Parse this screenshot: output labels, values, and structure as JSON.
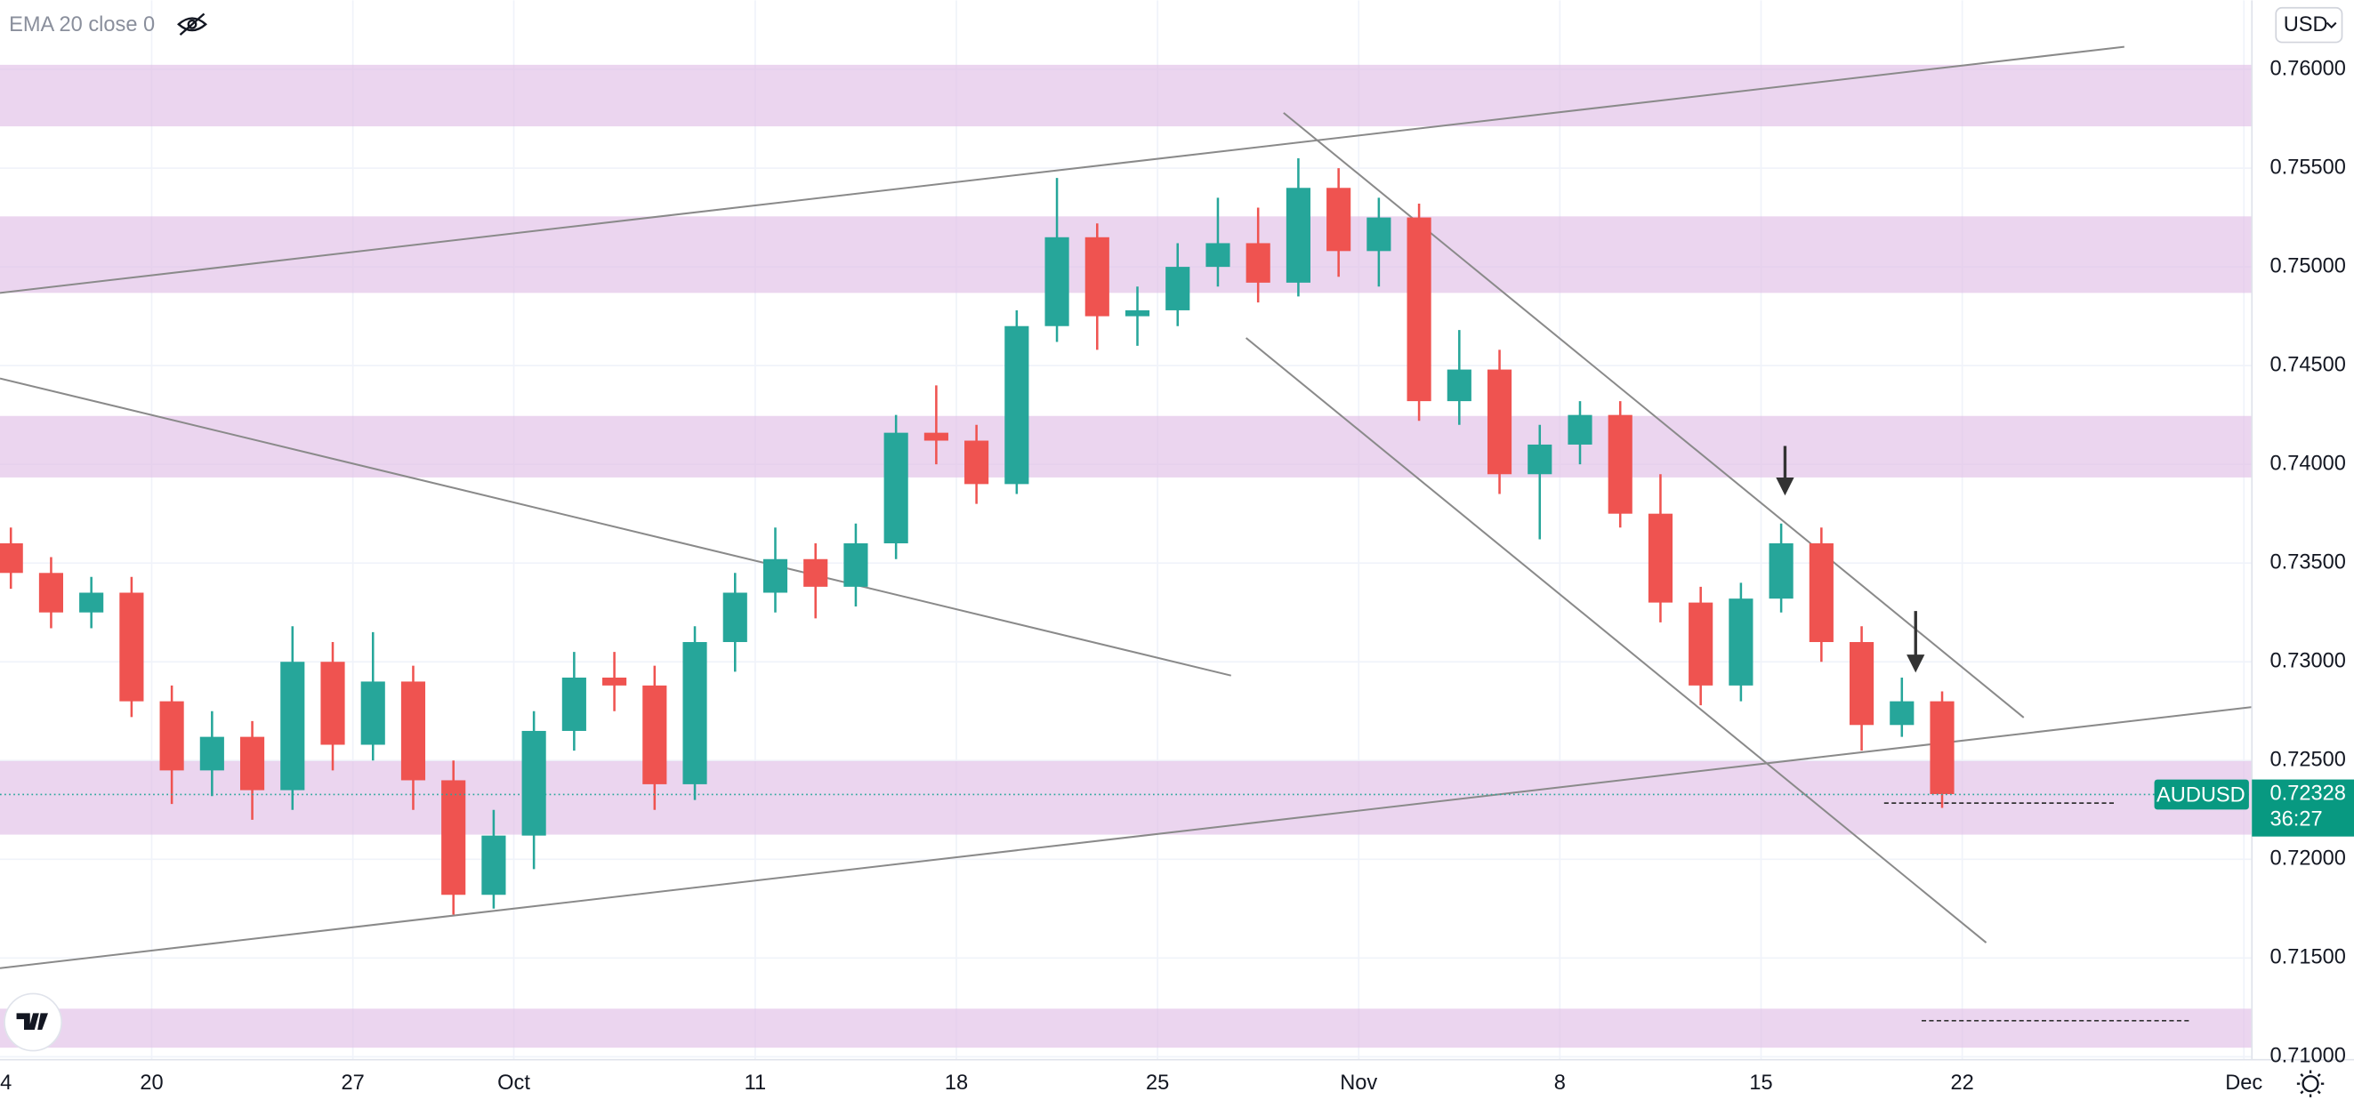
{
  "chart_data": {
    "type": "candlestick",
    "indicator_label": "EMA 20 close 0",
    "currency": "USD",
    "countdown": "36:27",
    "last_price": 0.72328,
    "xlim": [
      -3.77,
      52.2
    ],
    "xticks": [
      {
        "value": -4,
        "label": "4"
      },
      {
        "value": 0,
        "label": "20"
      },
      {
        "value": 5,
        "label": "27"
      },
      {
        "value": 9,
        "label": "Oct"
      },
      {
        "value": 15,
        "label": "11"
      },
      {
        "value": 20,
        "label": "18"
      },
      {
        "value": 25,
        "label": "25"
      },
      {
        "value": 30,
        "label": "Nov"
      },
      {
        "value": 35,
        "label": "8"
      },
      {
        "value": 40,
        "label": "15"
      },
      {
        "value": 45,
        "label": "22"
      },
      {
        "value": 52,
        "label": "Dec"
      }
    ],
    "ylim": [
      0.70985,
      0.7635
    ],
    "yticks": [
      {
        "value": 0.71,
        "label": "0.71000"
      },
      {
        "value": 0.715,
        "label": "0.71500"
      },
      {
        "value": 0.72,
        "label": "0.72000"
      },
      {
        "value": 0.725,
        "label": "0.72500"
      },
      {
        "value": 0.73,
        "label": "0.73000"
      },
      {
        "value": 0.735,
        "label": "0.73500"
      },
      {
        "value": 0.74,
        "label": "0.74000"
      },
      {
        "value": 0.745,
        "label": "0.74500"
      },
      {
        "value": 0.75,
        "label": "0.75000"
      },
      {
        "value": 0.755,
        "label": "0.75500"
      },
      {
        "value": 0.76,
        "label": "0.76000"
      }
    ],
    "grid": true,
    "x": [
      -3.5,
      -2.5,
      -1.5,
      -0.5,
      0.5,
      1.5,
      2.5,
      3.5,
      4.5,
      5.5,
      6.5,
      7.5,
      8.5,
      9.5,
      10.5,
      11.5,
      12.5,
      13.5,
      14.5,
      15.5,
      16.5,
      17.5,
      18.5,
      19.5,
      20.5,
      21.5,
      22.5,
      23.5,
      24.5,
      25.5,
      26.5,
      27.5,
      28.5,
      29.5,
      30.5,
      31.5,
      32.5,
      33.5,
      34.5,
      35.5,
      36.5,
      37.5,
      38.5,
      39.5,
      40.5,
      41.5,
      42.5,
      43.5,
      44.5
    ],
    "series": [
      {
        "name": "AUDUSD",
        "up_color": "#26a69a",
        "down_color": "#ef5350",
        "open": [
          0.736,
          0.7345,
          0.7325,
          0.7335,
          0.728,
          0.7245,
          0.7262,
          0.7235,
          0.73,
          0.7258,
          0.729,
          0.724,
          0.7182,
          0.7212,
          0.7265,
          0.7292,
          0.7288,
          0.7238,
          0.731,
          0.7335,
          0.7352,
          0.7338,
          0.736,
          0.7416,
          0.7412,
          0.739,
          0.747,
          0.7515,
          0.7475,
          0.7478,
          0.75,
          0.7512,
          0.7492,
          0.754,
          0.7508,
          0.7525,
          0.7432,
          0.7448,
          0.7395,
          0.741,
          0.7425,
          0.7375,
          0.733,
          0.7288,
          0.7332,
          0.736,
          0.731,
          0.7268,
          0.728
        ],
        "high": [
          0.7368,
          0.7353,
          0.7343,
          0.7343,
          0.7288,
          0.7275,
          0.727,
          0.7318,
          0.731,
          0.7315,
          0.7298,
          0.725,
          0.7225,
          0.7275,
          0.7305,
          0.7305,
          0.7298,
          0.7318,
          0.7345,
          0.7368,
          0.736,
          0.737,
          0.7425,
          0.744,
          0.742,
          0.7478,
          0.7545,
          0.7522,
          0.749,
          0.7512,
          0.7535,
          0.753,
          0.7555,
          0.755,
          0.7535,
          0.7532,
          0.7468,
          0.7458,
          0.742,
          0.7432,
          0.7432,
          0.7395,
          0.7338,
          0.734,
          0.737,
          0.7368,
          0.7318,
          0.7292,
          0.7285
        ],
        "low": [
          0.7337,
          0.7317,
          0.7317,
          0.7272,
          0.7228,
          0.7232,
          0.722,
          0.7225,
          0.7245,
          0.725,
          0.7225,
          0.7172,
          0.7175,
          0.7195,
          0.7255,
          0.7275,
          0.7225,
          0.723,
          0.7295,
          0.7325,
          0.7322,
          0.7328,
          0.7352,
          0.74,
          0.738,
          0.7385,
          0.7462,
          0.7458,
          0.746,
          0.747,
          0.749,
          0.7482,
          0.7485,
          0.7495,
          0.749,
          0.7422,
          0.742,
          0.7385,
          0.7362,
          0.74,
          0.7368,
          0.732,
          0.7278,
          0.728,
          0.7325,
          0.73,
          0.7255,
          0.7262,
          0.7226
        ],
        "close": [
          0.7345,
          0.7325,
          0.7335,
          0.728,
          0.7245,
          0.7262,
          0.7235,
          0.73,
          0.7258,
          0.729,
          0.724,
          0.7182,
          0.7212,
          0.7265,
          0.7292,
          0.7288,
          0.7238,
          0.731,
          0.7335,
          0.7352,
          0.7338,
          0.736,
          0.7416,
          0.7412,
          0.739,
          0.747,
          0.7515,
          0.7475,
          0.7478,
          0.75,
          0.7512,
          0.7492,
          0.754,
          0.7508,
          0.7525,
          0.7432,
          0.7448,
          0.7395,
          0.741,
          0.7425,
          0.7375,
          0.733,
          0.7288,
          0.7332,
          0.736,
          0.731,
          0.7268,
          0.728,
          0.7233
        ]
      }
    ]
  }
}
